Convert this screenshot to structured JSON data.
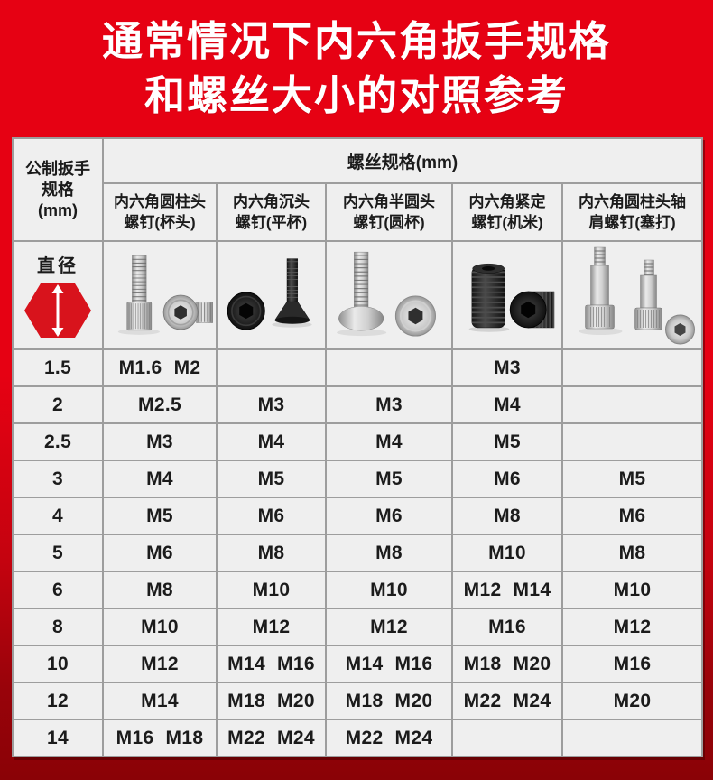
{
  "title": {
    "line1": "通常情况下内六角扳手规格",
    "line2": "和螺丝大小的对照参考"
  },
  "table": {
    "wrench_header_lines": [
      "公制扳手",
      "规格",
      "(mm)"
    ],
    "screw_header": "螺丝规格(mm)",
    "diameter_label": "直径",
    "columns": [
      {
        "line1": "内六角圆柱头",
        "line2": "螺钉(杯头)"
      },
      {
        "line1": "内六角沉头",
        "line2": "螺钉(平杯)"
      },
      {
        "line1": "内六角半圆头",
        "line2": "螺钉(圆杯)"
      },
      {
        "line1": "内六角紧定",
        "line2": "螺钉(机米)"
      },
      {
        "line1": "内六角圆柱头轴",
        "line2": "肩螺钉(塞打)"
      }
    ],
    "photo_names": [
      "socket-head-cap-screw-photo",
      "countersunk-screw-photo",
      "button-head-screw-photo",
      "set-screw-photo",
      "shoulder-screw-photo"
    ]
  },
  "chart_data": {
    "type": "table",
    "title": "通常情况下内六角扳手规格和螺丝大小的对照参考",
    "columns": [
      "公制扳手规格(mm)",
      "内六角圆柱头螺钉(杯头)",
      "内六角沉头螺钉(平杯)",
      "内六角半圆头螺钉(圆杯)",
      "内六角紧定螺钉(机米)",
      "内六角圆柱头轴肩螺钉(塞打)"
    ],
    "rows": [
      [
        "1.5",
        "M1.6 M2",
        "",
        "",
        "M3",
        ""
      ],
      [
        "2",
        "M2.5",
        "M3",
        "M3",
        "M4",
        ""
      ],
      [
        "2.5",
        "M3",
        "M4",
        "M4",
        "M5",
        ""
      ],
      [
        "3",
        "M4",
        "M5",
        "M5",
        "M6",
        "M5"
      ],
      [
        "4",
        "M5",
        "M6",
        "M6",
        "M8",
        "M6"
      ],
      [
        "5",
        "M6",
        "M8",
        "M8",
        "M10",
        "M8"
      ],
      [
        "6",
        "M8",
        "M10",
        "M10",
        "M12 M14",
        "M10"
      ],
      [
        "8",
        "M10",
        "M12",
        "M12",
        "M16",
        "M12"
      ],
      [
        "10",
        "M12",
        "M14 M16",
        "M14 M16",
        "M18 M20",
        "M16"
      ],
      [
        "12",
        "M14",
        "M18 M20",
        "M18 M20",
        "M22 M24",
        "M20"
      ],
      [
        "14",
        "M16 M18",
        "M22 M24",
        "M22 M24",
        "",
        ""
      ]
    ]
  },
  "icons": {
    "diameter_hexagon": "red-hexagon-vertical-double-arrow-icon"
  },
  "colors": {
    "brand_red": "#e60113",
    "dark_red": "#8a0206",
    "hexagon_red": "#d8131c",
    "cell_bg": "#efefef",
    "photo_bg": "#f5f4f2",
    "grid_border": "#9d9d9d",
    "text": "#1b1b1b",
    "title_text": "#ffffff"
  }
}
